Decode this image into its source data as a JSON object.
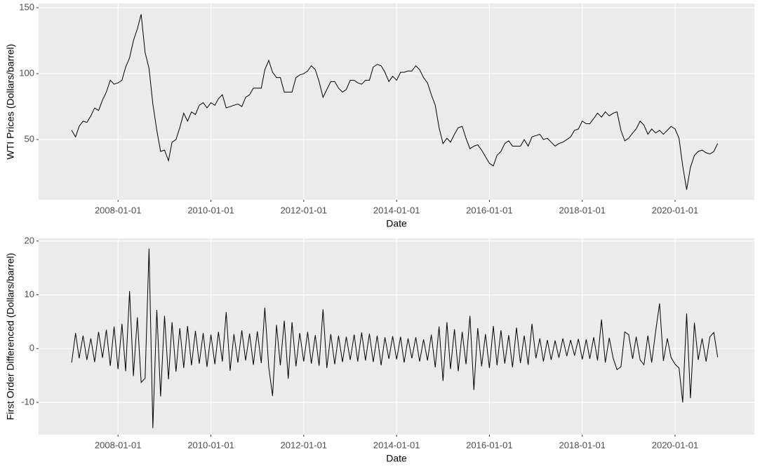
{
  "chart_data": [
    {
      "type": "line",
      "xlabel": "Date",
      "ylabel": "WTI Prices (Dollars/barrel)",
      "color": "#000000",
      "grid": true,
      "xlim": [
        "2006-04-16",
        "2021-09-16"
      ],
      "ylim": [
        4.3,
        153.2
      ],
      "xticks": [
        "2008-01-01",
        "2010-01-01",
        "2012-01-01",
        "2014-01-01",
        "2016-01-01",
        "2018-01-01",
        "2020-01-01"
      ],
      "yticks": [
        50,
        100,
        150
      ],
      "x": [
        "2007-01-01",
        "2007-02-01",
        "2007-03-01",
        "2007-04-01",
        "2007-05-01",
        "2007-06-01",
        "2007-07-01",
        "2007-08-01",
        "2007-09-01",
        "2007-10-01",
        "2007-11-01",
        "2007-12-01",
        "2008-01-01",
        "2008-02-01",
        "2008-03-01",
        "2008-04-01",
        "2008-05-01",
        "2008-06-01",
        "2008-07-01",
        "2008-08-01",
        "2008-09-01",
        "2008-10-01",
        "2008-11-01",
        "2008-12-01",
        "2009-01-01",
        "2009-02-01",
        "2009-03-01",
        "2009-04-01",
        "2009-05-01",
        "2009-06-01",
        "2009-07-01",
        "2009-08-01",
        "2009-09-01",
        "2009-10-01",
        "2009-11-01",
        "2009-12-01",
        "2010-01-01",
        "2010-02-01",
        "2010-03-01",
        "2010-04-01",
        "2010-05-01",
        "2010-06-01",
        "2010-07-01",
        "2010-08-01",
        "2010-09-01",
        "2010-10-01",
        "2010-11-01",
        "2010-12-01",
        "2011-01-01",
        "2011-02-01",
        "2011-03-01",
        "2011-04-01",
        "2011-05-01",
        "2011-06-01",
        "2011-07-01",
        "2011-08-01",
        "2011-09-01",
        "2011-10-01",
        "2011-11-01",
        "2011-12-01",
        "2012-01-01",
        "2012-02-01",
        "2012-03-01",
        "2012-04-01",
        "2012-05-01",
        "2012-06-01",
        "2012-07-01",
        "2012-08-01",
        "2012-09-01",
        "2012-10-01",
        "2012-11-01",
        "2012-12-01",
        "2013-01-01",
        "2013-02-01",
        "2013-03-01",
        "2013-04-01",
        "2013-05-01",
        "2013-06-01",
        "2013-07-01",
        "2013-08-01",
        "2013-09-01",
        "2013-10-01",
        "2013-11-01",
        "2013-12-01",
        "2014-01-01",
        "2014-02-01",
        "2014-03-01",
        "2014-04-01",
        "2014-05-01",
        "2014-06-01",
        "2014-07-01",
        "2014-08-01",
        "2014-09-01",
        "2014-10-01",
        "2014-11-01",
        "2014-12-01",
        "2015-01-01",
        "2015-02-01",
        "2015-03-01",
        "2015-04-01",
        "2015-05-01",
        "2015-06-01",
        "2015-07-01",
        "2015-08-01",
        "2015-09-01",
        "2015-10-01",
        "2015-11-01",
        "2015-12-01",
        "2016-01-01",
        "2016-02-01",
        "2016-03-01",
        "2016-04-01",
        "2016-05-01",
        "2016-06-01",
        "2016-07-01",
        "2016-08-01",
        "2016-09-01",
        "2016-10-01",
        "2016-11-01",
        "2016-12-01",
        "2017-01-01",
        "2017-02-01",
        "2017-03-01",
        "2017-04-01",
        "2017-05-01",
        "2017-06-01",
        "2017-07-01",
        "2017-08-01",
        "2017-09-01",
        "2017-10-01",
        "2017-11-01",
        "2017-12-01",
        "2018-01-01",
        "2018-02-01",
        "2018-03-01",
        "2018-04-01",
        "2018-05-01",
        "2018-06-01",
        "2018-07-01",
        "2018-08-01",
        "2018-09-01",
        "2018-10-01",
        "2018-11-01",
        "2018-12-01",
        "2019-01-01",
        "2019-02-01",
        "2019-03-01",
        "2019-04-01",
        "2019-05-01",
        "2019-06-01",
        "2019-07-01",
        "2019-08-01",
        "2019-09-01",
        "2019-10-01",
        "2019-11-01",
        "2019-12-01",
        "2020-01-01",
        "2020-02-01",
        "2020-03-01",
        "2020-04-01",
        "2020-05-01",
        "2020-06-01",
        "2020-07-01",
        "2020-08-01",
        "2020-09-01",
        "2020-10-01",
        "2020-11-01",
        "2020-12-01"
      ],
      "values": [
        57,
        52,
        60,
        64,
        63,
        68,
        74,
        72,
        80,
        86,
        95,
        92,
        93,
        95,
        105,
        112,
        125,
        134,
        145,
        116,
        104,
        77,
        57,
        41,
        42,
        34,
        48,
        50,
        59,
        70,
        64,
        71,
        69,
        76,
        78,
        74,
        78,
        76,
        81,
        84,
        74,
        75,
        76,
        77,
        75,
        82,
        84,
        89,
        89,
        89,
        103,
        110,
        101,
        97,
        97,
        86,
        86,
        86,
        97,
        99,
        100,
        102,
        106,
        103,
        94,
        82,
        88,
        94,
        94,
        89,
        86,
        88,
        95,
        95,
        93,
        92,
        95,
        95,
        105,
        107,
        106,
        101,
        94,
        98,
        95,
        101,
        101,
        102,
        102,
        106,
        103,
        97,
        93,
        84,
        76,
        59,
        47,
        51,
        48,
        54,
        59,
        60,
        51,
        43,
        45,
        46,
        42,
        37,
        32,
        30,
        38,
        41,
        47,
        49,
        45,
        45,
        45,
        50,
        45,
        52,
        53,
        54,
        50,
        51,
        48,
        45,
        47,
        48,
        50,
        52,
        57,
        58,
        64,
        62,
        62,
        66,
        70,
        67,
        71,
        68,
        70,
        71,
        57,
        49,
        51,
        55,
        58,
        64,
        61,
        54,
        58,
        55,
        57,
        54,
        57,
        60,
        58,
        51,
        30,
        12,
        29,
        38,
        41,
        42,
        40,
        39,
        41,
        47
      ]
    },
    {
      "type": "line",
      "xlabel": "Date",
      "ylabel": "First Order Differenced (Dollars/barrel)",
      "color": "#000000",
      "grid": true,
      "xlim": [
        "2006-04-16",
        "2021-09-16"
      ],
      "ylim": [
        -16,
        20.5
      ],
      "xticks": [
        "2008-01-01",
        "2010-01-01",
        "2012-01-01",
        "2014-01-01",
        "2016-01-01",
        "2018-01-01",
        "2020-01-01"
      ],
      "yticks": [
        -10,
        0,
        10,
        20
      ],
      "x": [
        "2007-01-01",
        "2007-02-01",
        "2007-03-01",
        "2007-04-01",
        "2007-05-01",
        "2007-06-01",
        "2007-07-01",
        "2007-08-01",
        "2007-09-01",
        "2007-10-01",
        "2007-11-01",
        "2007-12-01",
        "2008-01-01",
        "2008-02-01",
        "2008-03-01",
        "2008-04-01",
        "2008-05-01",
        "2008-06-01",
        "2008-07-01",
        "2008-08-01",
        "2008-09-01",
        "2008-10-01",
        "2008-11-01",
        "2008-12-01",
        "2009-01-01",
        "2009-02-01",
        "2009-03-01",
        "2009-04-01",
        "2009-05-01",
        "2009-06-01",
        "2009-07-01",
        "2009-08-01",
        "2009-09-01",
        "2009-10-01",
        "2009-11-01",
        "2009-12-01",
        "2010-01-01",
        "2010-02-01",
        "2010-03-01",
        "2010-04-01",
        "2010-05-01",
        "2010-06-01",
        "2010-07-01",
        "2010-08-01",
        "2010-09-01",
        "2010-10-01",
        "2010-11-01",
        "2010-12-01",
        "2011-01-01",
        "2011-02-01",
        "2011-03-01",
        "2011-04-01",
        "2011-05-01",
        "2011-06-01",
        "2011-07-01",
        "2011-08-01",
        "2011-09-01",
        "2011-10-01",
        "2011-11-01",
        "2011-12-01",
        "2012-01-01",
        "2012-02-01",
        "2012-03-01",
        "2012-04-01",
        "2012-05-01",
        "2012-06-01",
        "2012-07-01",
        "2012-08-01",
        "2012-09-01",
        "2012-10-01",
        "2012-11-01",
        "2012-12-01",
        "2013-01-01",
        "2013-02-01",
        "2013-03-01",
        "2013-04-01",
        "2013-05-01",
        "2013-06-01",
        "2013-07-01",
        "2013-08-01",
        "2013-09-01",
        "2013-10-01",
        "2013-11-01",
        "2013-12-01",
        "2014-01-01",
        "2014-02-01",
        "2014-03-01",
        "2014-04-01",
        "2014-05-01",
        "2014-06-01",
        "2014-07-01",
        "2014-08-01",
        "2014-09-01",
        "2014-10-01",
        "2014-11-01",
        "2014-12-01",
        "2015-01-01",
        "2015-02-01",
        "2015-03-01",
        "2015-04-01",
        "2015-05-01",
        "2015-06-01",
        "2015-07-01",
        "2015-08-01",
        "2015-09-01",
        "2015-10-01",
        "2015-11-01",
        "2015-12-01",
        "2016-01-01",
        "2016-02-01",
        "2016-03-01",
        "2016-04-01",
        "2016-05-01",
        "2016-06-01",
        "2016-07-01",
        "2016-08-01",
        "2016-09-01",
        "2016-10-01",
        "2016-11-01",
        "2016-12-01",
        "2017-01-01",
        "2017-02-01",
        "2017-03-01",
        "2017-04-01",
        "2017-05-01",
        "2017-06-01",
        "2017-07-01",
        "2017-08-01",
        "2017-09-01",
        "2017-10-01",
        "2017-11-01",
        "2017-12-01",
        "2018-01-01",
        "2018-02-01",
        "2018-03-01",
        "2018-04-01",
        "2018-05-01",
        "2018-06-01",
        "2018-07-01",
        "2018-08-01",
        "2018-09-01",
        "2018-10-01",
        "2018-11-01",
        "2018-12-01",
        "2019-01-01",
        "2019-02-01",
        "2019-03-01",
        "2019-04-01",
        "2019-05-01",
        "2019-06-01",
        "2019-07-01",
        "2019-08-01",
        "2019-09-01",
        "2019-10-01",
        "2019-11-01",
        "2019-12-01",
        "2020-01-01",
        "2020-02-01",
        "2020-03-01",
        "2020-04-01",
        "2020-05-01",
        "2020-06-01",
        "2020-07-01",
        "2020-08-01",
        "2020-09-01",
        "2020-10-01",
        "2020-11-01",
        "2020-12-01"
      ],
      "values": [
        -2.6,
        2.9,
        -1.8,
        2.4,
        -2.1,
        1.9,
        -2.5,
        3.1,
        -1.7,
        3.5,
        -3.2,
        4.1,
        -3.8,
        4.6,
        -4.2,
        10.7,
        -5.1,
        5.8,
        -6.3,
        -5.5,
        18.6,
        -14.8,
        7.2,
        -8.9,
        6.1,
        -5.7,
        4.9,
        -4.3,
        3.8,
        -3.6,
        4.2,
        -3.1,
        3.3,
        -2.8,
        2.9,
        -3.4,
        2.6,
        -2.9,
        3.1,
        -2.4,
        6.8,
        -4.1,
        2.7,
        -2.6,
        3.4,
        -2.2,
        2.8,
        -3.0,
        3.2,
        -2.7,
        7.6,
        -3.5,
        -8.8,
        4.4,
        -3.1,
        5.2,
        -5.6,
        4.9,
        -3.3,
        2.9,
        -2.4,
        3.1,
        -2.8,
        2.5,
        -3.2,
        7.3,
        -3.6,
        2.7,
        -2.9,
        2.4,
        -2.5,
        2.2,
        -2.1,
        2.6,
        -2.4,
        3.0,
        -2.2,
        2.8,
        -2.5,
        2.4,
        -3.1,
        2.1,
        -1.9,
        2.3,
        -2.0,
        2.2,
        -2.6,
        1.9,
        -1.8,
        2.1,
        -2.4,
        1.7,
        -2.2,
        2.6,
        -3.5,
        4.1,
        -6.0,
        4.9,
        -3.8,
        3.6,
        -4.2,
        3.1,
        -2.9,
        6.1,
        -7.7,
        3.8,
        -3.3,
        2.7,
        -3.6,
        4.2,
        -3.1,
        3.4,
        -2.8,
        2.5,
        -3.5,
        3.9,
        -2.7,
        2.4,
        -3.0,
        4.6,
        -1.8,
        1.9,
        -2.4,
        1.6,
        -2.1,
        1.5,
        -1.7,
        1.9,
        -1.4,
        1.6,
        -1.3,
        1.8,
        -2.0,
        1.7,
        -1.9,
        2.1,
        -2.2,
        5.4,
        -2.6,
        2.0,
        -1.8,
        -3.9,
        -3.4,
        3.1,
        2.6,
        -1.9,
        2.2,
        -2.1,
        -3.0,
        2.4,
        -2.6,
        3.2,
        8.4,
        -2.3,
        1.9,
        -1.7,
        -2.9,
        -3.6,
        -10.0,
        6.5,
        -9.2,
        4.8,
        -2.1,
        1.9,
        -2.4,
        2.2,
        3.0,
        -1.6
      ]
    }
  ]
}
